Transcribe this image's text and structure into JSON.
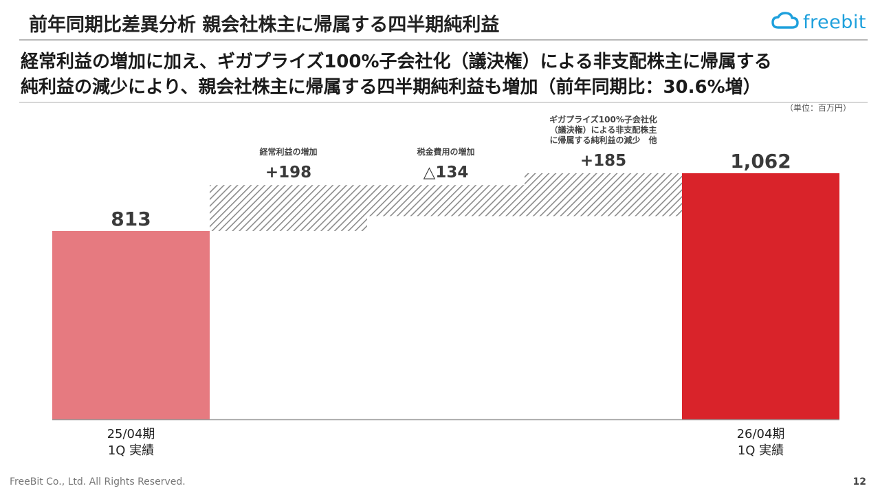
{
  "header": {
    "title": "前年同期比差異分析 親会社株主に帰属する四半期純利益",
    "logo_text": "freebit",
    "logo_icon": "cloud-icon",
    "brand_color": "#1ea0dc"
  },
  "subtitle": {
    "line1": "経常利益の増加に加え、ギガプライズ100%子会社化（議決権）による非支配株主に帰属する",
    "line2": "純利益の減少により、親会社株主に帰属する四半期純利益も増加（前年同期比：30.6%増）"
  },
  "unit_label": "（単位：百万円）",
  "chart_data": {
    "type": "bar",
    "subtype": "waterfall",
    "ylim": [
      0,
      1062
    ],
    "colors": {
      "start": "#e67a80",
      "end": "#d9232a",
      "delta_fill": "#ffffff",
      "delta_hatch": "#888888"
    },
    "bars": [
      {
        "kind": "total",
        "value": 813,
        "value_label": "813",
        "category_lines": [
          "25/04期",
          "1Q 実績"
        ]
      },
      {
        "kind": "delta",
        "base": 813,
        "value": 198,
        "value_label": "+198",
        "desc_lines": [
          "経常利益の増加"
        ]
      },
      {
        "kind": "delta",
        "base": 877,
        "value": 134,
        "value_label": "△134",
        "desc_lines": [
          "税金費用の増加"
        ]
      },
      {
        "kind": "delta",
        "base": 877,
        "value": 185,
        "value_label": "+185",
        "desc_lines": [
          "ギガプライズ100%子会社化",
          "（議決権）による非支配株主",
          "に帰属する純利益の減少　他"
        ]
      },
      {
        "kind": "total",
        "value": 1062,
        "value_label": "1,062",
        "category_lines": [
          "26/04期",
          "1Q 実績"
        ]
      }
    ]
  },
  "footer": {
    "copyright": "FreeBit Co., Ltd. All Rights Reserved.",
    "page_number": "12"
  }
}
